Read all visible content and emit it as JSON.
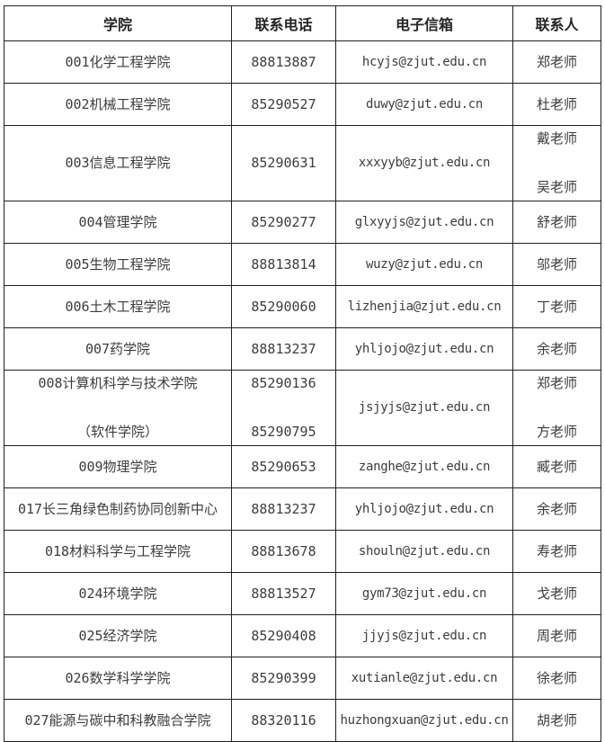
{
  "colors": {
    "background": "#ffffff",
    "border": "#1f1f1f",
    "body_text": "#3c3c3c",
    "header_text": "#242424"
  },
  "table": {
    "headers": [
      "学院",
      "联系电话",
      "电子信箱",
      "联系人"
    ],
    "rows": [
      {
        "college": [
          "001化学工程学院"
        ],
        "phone": [
          "88813887"
        ],
        "email": [
          "hcyjs@zjut.edu.cn"
        ],
        "contact": [
          "郑老师"
        ]
      },
      {
        "college": [
          "002机械工程学院"
        ],
        "phone": [
          "85290527"
        ],
        "email": [
          "duwy@zjut.edu.cn"
        ],
        "contact": [
          "杜老师"
        ]
      },
      {
        "college": [
          "003信息工程学院"
        ],
        "phone": [
          "85290631"
        ],
        "email": [
          "xxxyyb@zjut.edu.cn"
        ],
        "contact": [
          "戴老师",
          "吴老师"
        ]
      },
      {
        "college": [
          "004管理学院"
        ],
        "phone": [
          "85290277"
        ],
        "email": [
          "glxyyjs@zjut.edu.cn"
        ],
        "contact": [
          "舒老师"
        ]
      },
      {
        "college": [
          "005生物工程学院"
        ],
        "phone": [
          "88813814"
        ],
        "email": [
          "wuzy@zjut.edu.cn"
        ],
        "contact": [
          "邬老师"
        ]
      },
      {
        "college": [
          "006土木工程学院"
        ],
        "phone": [
          "85290060"
        ],
        "email": [
          "lizhenjia@zjut.edu.cn"
        ],
        "contact": [
          "丁老师"
        ]
      },
      {
        "college": [
          "007药学院"
        ],
        "phone": [
          "88813237"
        ],
        "email": [
          "yhljojo@zjut.edu.cn"
        ],
        "contact": [
          "余老师"
        ]
      },
      {
        "college": [
          "008计算机科学与技术学院",
          "（软件学院）"
        ],
        "phone": [
          "85290136",
          "85290795"
        ],
        "email": [
          "jsjyjs@zjut.edu.cn"
        ],
        "contact": [
          "郑老师",
          "方老师"
        ]
      },
      {
        "college": [
          "009物理学院"
        ],
        "phone": [
          "85290653"
        ],
        "email": [
          "zanghe@zjut.edu.cn"
        ],
        "contact": [
          "臧老师"
        ]
      },
      {
        "college": [
          "017长三角绿色制药协同创新中心"
        ],
        "phone": [
          "88813237"
        ],
        "email": [
          "yhljojo@zjut.edu.cn"
        ],
        "contact": [
          "余老师"
        ]
      },
      {
        "college": [
          "018材料科学与工程学院"
        ],
        "phone": [
          "88813678"
        ],
        "email": [
          "shouln@zjut.edu.cn"
        ],
        "contact": [
          "寿老师"
        ]
      },
      {
        "college": [
          "024环境学院"
        ],
        "phone": [
          "88813527"
        ],
        "email": [
          "gym73@zjut.edu.cn"
        ],
        "contact": [
          "戈老师"
        ]
      },
      {
        "college": [
          "025经济学院"
        ],
        "phone": [
          "85290408"
        ],
        "email": [
          "jjyjs@zjut.edu.cn"
        ],
        "contact": [
          "周老师"
        ]
      },
      {
        "college": [
          "026数学科学学院"
        ],
        "phone": [
          "85290399"
        ],
        "email": [
          "xutianle@zjut.edu.cn"
        ],
        "contact": [
          "徐老师"
        ]
      },
      {
        "college": [
          "027能源与碳中和科教融合学院"
        ],
        "phone": [
          "88320116"
        ],
        "email": [
          "huzhongxuan@zjut.edu.cn"
        ],
        "contact": [
          "胡老师"
        ]
      }
    ]
  }
}
